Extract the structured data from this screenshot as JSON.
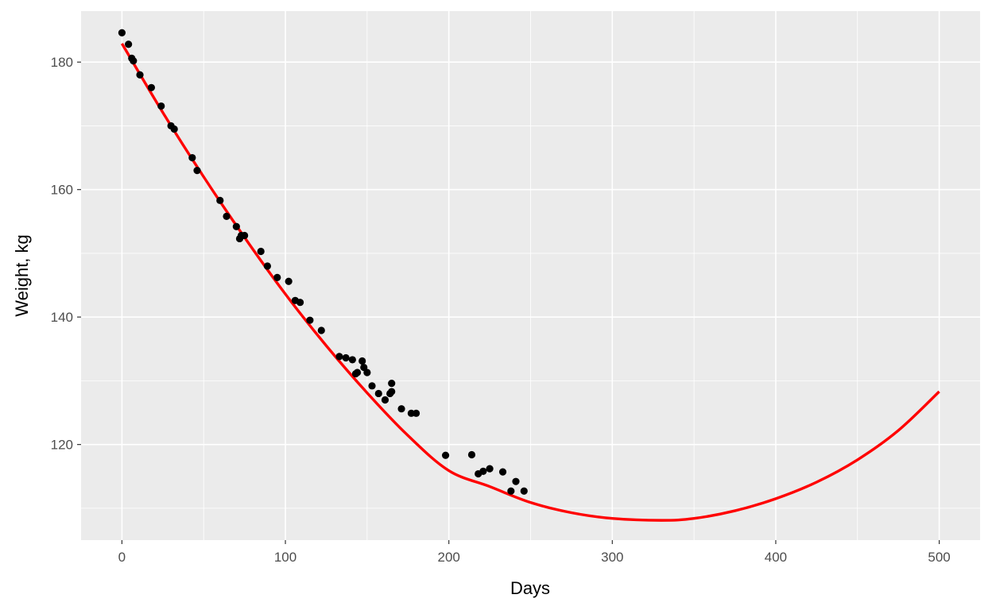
{
  "chart_data": {
    "type": "scatter",
    "title": "",
    "xlabel": "Days",
    "ylabel": "Weight, kg",
    "xlim": [
      -25,
      525
    ],
    "ylim": [
      105,
      188
    ],
    "x_ticks": [
      0,
      100,
      200,
      300,
      400,
      500
    ],
    "x_tick_labels": [
      "0",
      "100",
      "200",
      "300",
      "400",
      "500"
    ],
    "y_ticks": [
      120,
      140,
      160,
      180
    ],
    "y_tick_labels": [
      "120",
      "140",
      "160",
      "180"
    ],
    "grid": true,
    "legend": "none",
    "colors": {
      "panel_background": "#ebebeb",
      "grid": "#ffffff",
      "points": "#000000",
      "fit_line": "#ff0000"
    },
    "series": [
      {
        "kind": "points",
        "x": [
          0,
          4,
          6,
          7,
          11,
          18,
          24,
          30,
          32,
          43,
          46,
          60,
          64,
          70,
          72,
          73,
          75,
          85,
          89,
          95,
          102,
          106,
          109,
          115,
          122,
          133,
          137,
          141,
          143,
          144,
          147,
          148,
          150,
          153,
          157,
          161,
          164,
          165,
          165,
          171,
          177,
          180,
          198,
          214,
          218,
          221,
          225,
          233,
          238,
          241,
          246
        ],
        "y": [
          184.6,
          182.8,
          180.6,
          180.2,
          178.0,
          176.0,
          173.1,
          170.0,
          169.5,
          165.0,
          163.0,
          158.3,
          155.8,
          154.2,
          152.3,
          152.8,
          152.8,
          150.3,
          148.0,
          146.2,
          145.6,
          142.6,
          142.3,
          139.5,
          137.9,
          133.8,
          133.6,
          133.3,
          131.1,
          131.3,
          133.1,
          132.1,
          131.3,
          129.2,
          128.0,
          127.0,
          128.0,
          128.3,
          129.6,
          125.6,
          124.9,
          124.9,
          118.3,
          118.4,
          115.4,
          115.8,
          116.2,
          115.7,
          112.7,
          114.2,
          112.7
        ]
      },
      {
        "kind": "fit_line",
        "x": [
          0,
          25,
          50,
          75,
          100,
          125,
          150,
          175,
          200,
          225,
          250,
          275,
          300,
          330,
          350,
          375,
          400,
          425,
          450,
          475,
          500
        ],
        "y": [
          182.9,
          172.1,
          162.0,
          152.5,
          143.6,
          135.5,
          128.1,
          121.4,
          115.9,
          113.4,
          110.9,
          109.3,
          108.4,
          108.1,
          108.4,
          109.6,
          111.5,
          114.1,
          117.6,
          122.2,
          128.3
        ]
      }
    ]
  }
}
